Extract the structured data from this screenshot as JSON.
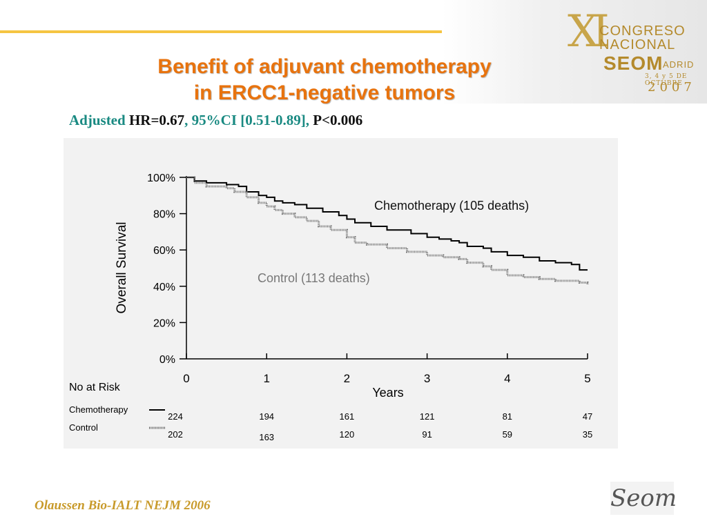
{
  "title_line1": "Benefit of adjuvant chemotherapy",
  "title_line2": "in  ERCC1-negative tumors",
  "subtitle": {
    "p1": "Adjusted ",
    "p2": "HR=0.67",
    "p3": ", 95%CI [0.51-0.89], ",
    "p4": "P<0.006"
  },
  "footer": "Olaussen Bio-IALT NEJM 2006",
  "logo": {
    "xi": "XI",
    "congreso": "CONGRESO",
    "nacional": "NACIONAL",
    "seom": "SEOM",
    "madrid": "ADRID",
    "dates": "3, 4 y 5 DE OCTUBRE",
    "year": "2007"
  },
  "footer_logo": "Seom",
  "chart_data": {
    "type": "line",
    "xlabel": "Years",
    "ylabel": "Overall Survival",
    "xlim": [
      0,
      5
    ],
    "ylim": [
      0,
      100
    ],
    "x_ticks": [
      "0",
      "1",
      "2",
      "3",
      "4",
      "5"
    ],
    "y_ticks": [
      "0%",
      "20%",
      "40%",
      "60%",
      "80%",
      "100%"
    ],
    "series": [
      {
        "name": "Chemotherapy (105 deaths)",
        "color": "#000000",
        "style": "solid",
        "points": [
          [
            0,
            100
          ],
          [
            0.1,
            98
          ],
          [
            0.25,
            97
          ],
          [
            0.5,
            96
          ],
          [
            0.65,
            95
          ],
          [
            0.75,
            92
          ],
          [
            0.9,
            90
          ],
          [
            1.0,
            89
          ],
          [
            1.1,
            87
          ],
          [
            1.2,
            86
          ],
          [
            1.35,
            85
          ],
          [
            1.5,
            83
          ],
          [
            1.7,
            81
          ],
          [
            1.9,
            79
          ],
          [
            2.0,
            77
          ],
          [
            2.1,
            75
          ],
          [
            2.3,
            73
          ],
          [
            2.5,
            71
          ],
          [
            2.8,
            69
          ],
          [
            3.0,
            67
          ],
          [
            3.15,
            66
          ],
          [
            3.3,
            65
          ],
          [
            3.4,
            64
          ],
          [
            3.5,
            62
          ],
          [
            3.7,
            61
          ],
          [
            3.8,
            59
          ],
          [
            4.0,
            57
          ],
          [
            4.2,
            56
          ],
          [
            4.4,
            54
          ],
          [
            4.6,
            53
          ],
          [
            4.8,
            52
          ],
          [
            4.9,
            49
          ],
          [
            5.0,
            49
          ]
        ]
      },
      {
        "name": "Control (113 deaths)",
        "color": "#6e6e6e",
        "style": "hatched",
        "points": [
          [
            0,
            100
          ],
          [
            0.1,
            97
          ],
          [
            0.25,
            95
          ],
          [
            0.5,
            94
          ],
          [
            0.6,
            92
          ],
          [
            0.75,
            89
          ],
          [
            0.9,
            86
          ],
          [
            1.0,
            84
          ],
          [
            1.1,
            82
          ],
          [
            1.2,
            80
          ],
          [
            1.35,
            78
          ],
          [
            1.5,
            76
          ],
          [
            1.65,
            73
          ],
          [
            1.8,
            71
          ],
          [
            2.0,
            67
          ],
          [
            2.1,
            64
          ],
          [
            2.25,
            63
          ],
          [
            2.5,
            61
          ],
          [
            2.75,
            59
          ],
          [
            3.0,
            57
          ],
          [
            3.2,
            56
          ],
          [
            3.4,
            55
          ],
          [
            3.5,
            53
          ],
          [
            3.7,
            51
          ],
          [
            3.8,
            49
          ],
          [
            4.0,
            46
          ],
          [
            4.2,
            45
          ],
          [
            4.4,
            44
          ],
          [
            4.6,
            43
          ],
          [
            4.8,
            43
          ],
          [
            4.9,
            42
          ],
          [
            5.0,
            41
          ]
        ]
      }
    ],
    "risk_table": {
      "header": "No at Risk",
      "rows": [
        {
          "label": "Chemotherapy",
          "style": "solid",
          "values": [
            "224",
            "194",
            "161",
            "121",
            "81",
            "47"
          ]
        },
        {
          "label": "Control",
          "style": "hatched",
          "values": [
            "202",
            "163",
            "120",
            "91",
            "59",
            "35"
          ]
        }
      ]
    }
  }
}
